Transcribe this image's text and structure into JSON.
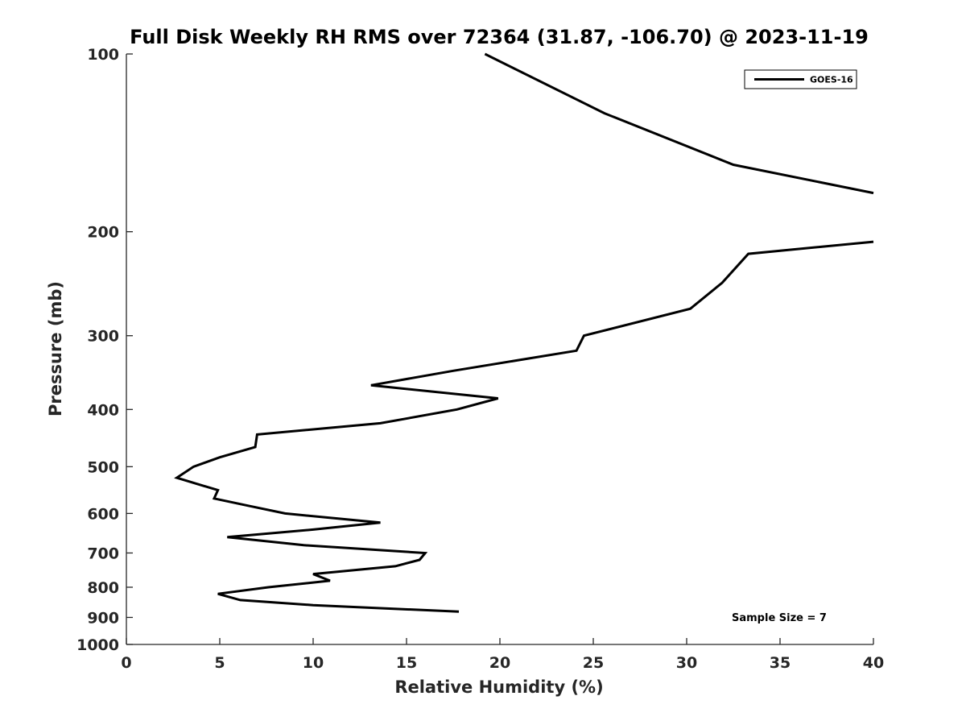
{
  "chart_data": {
    "type": "line",
    "title": "Full Disk Weekly RH RMS over 72364 (31.87, -106.70) @ 2023-11-19",
    "xlabel": "Relative Humidity (%)",
    "ylabel": "Pressure (mb)",
    "xlim": [
      0,
      40
    ],
    "ylim": [
      100,
      1000
    ],
    "y_scale": "log",
    "y_reversed": true,
    "xticks": [
      0,
      5,
      10,
      15,
      20,
      25,
      30,
      35,
      40
    ],
    "yticks": [
      100,
      200,
      300,
      400,
      500,
      600,
      700,
      800,
      900,
      1000
    ],
    "grid": false,
    "legend_position": "top-right",
    "series": [
      {
        "name": "GOES-16",
        "color": "#000000",
        "segments": [
          [
            {
              "x": 19.2,
              "p": 100
            },
            {
              "x": 25.6,
              "p": 126
            },
            {
              "x": 32.5,
              "p": 154
            },
            {
              "x": 40.0,
              "p": 172
            }
          ],
          [
            {
              "x": 40.0,
              "p": 208
            },
            {
              "x": 33.3,
              "p": 218
            },
            {
              "x": 31.9,
              "p": 244
            },
            {
              "x": 30.2,
              "p": 270
            },
            {
              "x": 24.5,
              "p": 300
            },
            {
              "x": 24.1,
              "p": 318
            },
            {
              "x": 17.5,
              "p": 344
            },
            {
              "x": 13.1,
              "p": 364
            },
            {
              "x": 19.9,
              "p": 383
            },
            {
              "x": 17.7,
              "p": 400
            },
            {
              "x": 13.6,
              "p": 422
            },
            {
              "x": 7.0,
              "p": 441
            },
            {
              "x": 6.9,
              "p": 463
            },
            {
              "x": 5.0,
              "p": 482
            },
            {
              "x": 3.6,
              "p": 500
            },
            {
              "x": 2.7,
              "p": 522
            },
            {
              "x": 4.9,
              "p": 548
            },
            {
              "x": 4.7,
              "p": 566
            },
            {
              "x": 6.5,
              "p": 582
            },
            {
              "x": 8.5,
              "p": 600
            },
            {
              "x": 13.6,
              "p": 622
            },
            {
              "x": 10.0,
              "p": 639
            },
            {
              "x": 5.4,
              "p": 658
            },
            {
              "x": 9.5,
              "p": 679
            },
            {
              "x": 16.0,
              "p": 700
            },
            {
              "x": 15.7,
              "p": 719
            },
            {
              "x": 14.4,
              "p": 737
            },
            {
              "x": 10.0,
              "p": 760
            },
            {
              "x": 10.9,
              "p": 780
            },
            {
              "x": 7.6,
              "p": 800
            },
            {
              "x": 4.9,
              "p": 821
            },
            {
              "x": 6.1,
              "p": 841
            },
            {
              "x": 10.0,
              "p": 858
            },
            {
              "x": 17.8,
              "p": 880
            }
          ]
        ]
      }
    ],
    "annotations": [
      {
        "text": "Sample Size = 7"
      }
    ]
  }
}
